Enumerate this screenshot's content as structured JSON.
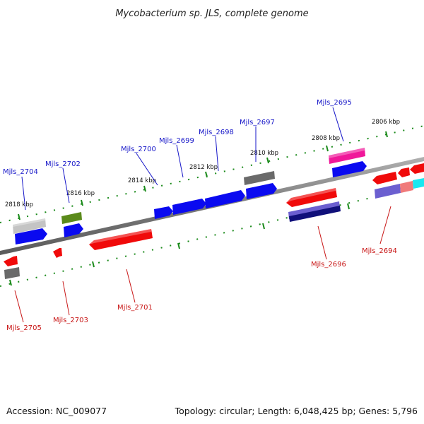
{
  "header": {
    "title": "Mycobacterium sp. JLS, complete genome"
  },
  "footer": {
    "accession": "Accession: NC_009077",
    "summary": "Topology: circular; Length: 6,048,425 bp; Genes: 5,796"
  },
  "scale_labels": [
    "2818 kbp",
    "2816 kbp",
    "2814 kbp",
    "2812 kbp",
    "2810 kbp",
    "2808 kbp",
    "2806 kbp"
  ],
  "gene_labels_top": [
    "Mjls_2704",
    "Mjls_2702",
    "Mjls_2700",
    "Mjls_2699",
    "Mjls_2698",
    "Mjls_2697",
    "Mjls_2695"
  ],
  "gene_labels_bottom": [
    "Mjls_2705",
    "Mjls_2703",
    "Mjls_2701",
    "Mjls_2696",
    "Mjls_2694"
  ],
  "colors": {
    "blue": "#0a0af0",
    "red": "#f00a0a",
    "gray": "#6a6a6a",
    "light_gray": "#c4c4c4",
    "green": "#5a8a1a",
    "magenta": "#f0189a",
    "slate_blue": "#6b5fd0",
    "navy": "#10107a",
    "pink": "#f07a7a",
    "cyan": "#18e8f0",
    "backbone": "#888888",
    "tick": "#1a8a1a"
  }
}
